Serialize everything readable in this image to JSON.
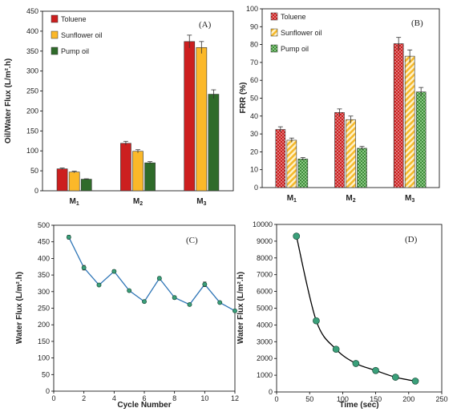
{
  "chart_data": [
    {
      "panel": "(A)",
      "type": "bar",
      "categories": [
        {
          "main": "M",
          "sub": "1"
        },
        {
          "main": "M",
          "sub": "2"
        },
        {
          "main": "M",
          "sub": "3"
        }
      ],
      "ylabel": "Oil/Water Flux (L/m².h)",
      "ylim": [
        0,
        450
      ],
      "yticks": [
        0,
        50,
        100,
        150,
        200,
        250,
        300,
        350,
        400,
        450
      ],
      "legend_position": "top-left",
      "series": [
        {
          "name": "Toluene",
          "color": "#cc1f1f",
          "pattern": "solid",
          "values": [
            55,
            119,
            374
          ],
          "errors": [
            2,
            5,
            16
          ]
        },
        {
          "name": "Sunflower oil",
          "color": "#fbb829",
          "pattern": "solid",
          "values": [
            47,
            99,
            359
          ],
          "errors": [
            2,
            4,
            15
          ]
        },
        {
          "name": "Pump oil",
          "color": "#2f6b2a",
          "pattern": "solid",
          "values": [
            29,
            70,
            242
          ],
          "errors": [
            1,
            3,
            11
          ]
        }
      ]
    },
    {
      "panel": "(B)",
      "type": "bar",
      "categories": [
        {
          "main": "M",
          "sub": "1"
        },
        {
          "main": "M",
          "sub": "2"
        },
        {
          "main": "M",
          "sub": "3"
        }
      ],
      "ylabel": "FRR (%)",
      "ylim": [
        0,
        100
      ],
      "yticks": [
        0,
        10,
        20,
        30,
        40,
        50,
        60,
        70,
        80,
        90,
        100
      ],
      "legend_position": "top-left",
      "series": [
        {
          "name": "Toluene",
          "color": "#cc1f1f",
          "pattern": "dots",
          "values": [
            32.5,
            42,
            80.5
          ],
          "errors": [
            1.5,
            2,
            3.5
          ]
        },
        {
          "name": "Sunflower oil",
          "color": "#fbd26a",
          "pattern": "stripes",
          "values": [
            26.5,
            38,
            73.5
          ],
          "errors": [
            1.2,
            2,
            3.5
          ]
        },
        {
          "name": "Pump oil",
          "color": "#4e9b47",
          "pattern": "checks",
          "values": [
            16,
            22,
            53.5
          ],
          "errors": [
            0.8,
            1,
            2.5
          ]
        }
      ]
    },
    {
      "panel": "(C)",
      "type": "line",
      "xlabel": "Cycle Number",
      "ylabel": "Water Flux (L/m².h)",
      "xlim": [
        0,
        12
      ],
      "ylim": [
        0,
        500
      ],
      "xticks": [
        0,
        2,
        4,
        6,
        8,
        10,
        12
      ],
      "yticks": [
        0,
        50,
        100,
        150,
        200,
        250,
        300,
        350,
        400,
        450,
        500
      ],
      "line_color": "#2e75b6",
      "marker_color": "#3aa07a",
      "series": [
        {
          "x": [
            1,
            2,
            3,
            4,
            5,
            6,
            7,
            8,
            9,
            10,
            11,
            12
          ],
          "values": [
            464,
            372,
            320,
            361,
            303,
            270,
            340,
            282,
            261,
            322,
            267,
            242
          ],
          "errors": [
            6,
            7,
            4,
            5,
            4,
            4,
            5,
            5,
            4,
            7,
            4,
            4
          ]
        }
      ]
    },
    {
      "panel": "(D)",
      "type": "line",
      "xlabel": "Time (sec)",
      "ylabel": "Water Flux (L/m².h)",
      "xlim": [
        0,
        250
      ],
      "ylim": [
        0,
        10000
      ],
      "xticks": [
        0,
        50,
        100,
        150,
        200,
        250
      ],
      "yticks": [
        0,
        1000,
        2000,
        3000,
        4000,
        5000,
        6000,
        7000,
        8000,
        9000,
        10000
      ],
      "line_color": "#000000",
      "marker_color": "#3aa07a",
      "smooth": true,
      "series": [
        {
          "x": [
            30,
            60,
            90,
            120,
            150,
            180,
            210
          ],
          "values": [
            9300,
            4250,
            2550,
            1700,
            1280,
            880,
            650
          ]
        }
      ]
    }
  ]
}
